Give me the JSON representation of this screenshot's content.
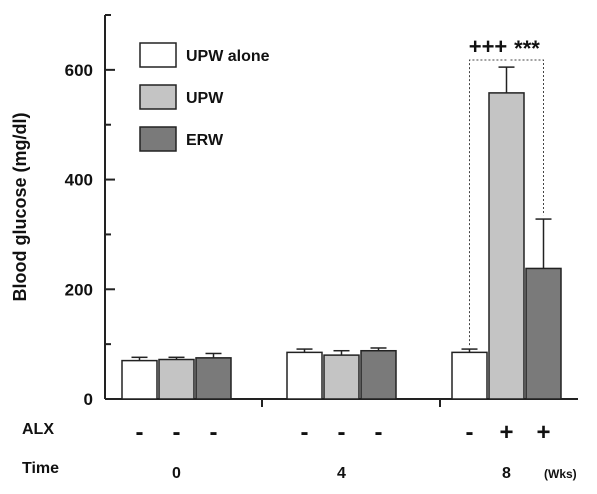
{
  "chart_data": {
    "type": "bar",
    "title": "",
    "ylabel": "Blood glucose (mg/dl)",
    "xlabel": "",
    "ylim": [
      0,
      700
    ],
    "yticks": [
      0,
      200,
      400,
      600
    ],
    "categories": [
      "0",
      "4",
      "8"
    ],
    "category_unit": "(Wks)",
    "row_labels": {
      "alx": "ALX",
      "time": "Time"
    },
    "alx_markers": [
      [
        "-",
        "-",
        "-"
      ],
      [
        "-",
        "-",
        "-"
      ],
      [
        "-",
        "+",
        "+"
      ]
    ],
    "series": [
      {
        "name": "UPW alone",
        "color": "#ffffff",
        "values": [
          70,
          85,
          85
        ],
        "errors": [
          6,
          6,
          6
        ]
      },
      {
        "name": "UPW",
        "color": "#c4c4c4",
        "values": [
          72,
          80,
          558
        ],
        "errors": [
          4,
          8,
          47
        ]
      },
      {
        "name": "ERW",
        "color": "#7a7a7a",
        "values": [
          75,
          88,
          238
        ],
        "errors": [
          8,
          5,
          90
        ]
      }
    ],
    "legend": {
      "position": "top-left"
    },
    "grid": false,
    "annotations": [
      "+++",
      "***"
    ]
  }
}
